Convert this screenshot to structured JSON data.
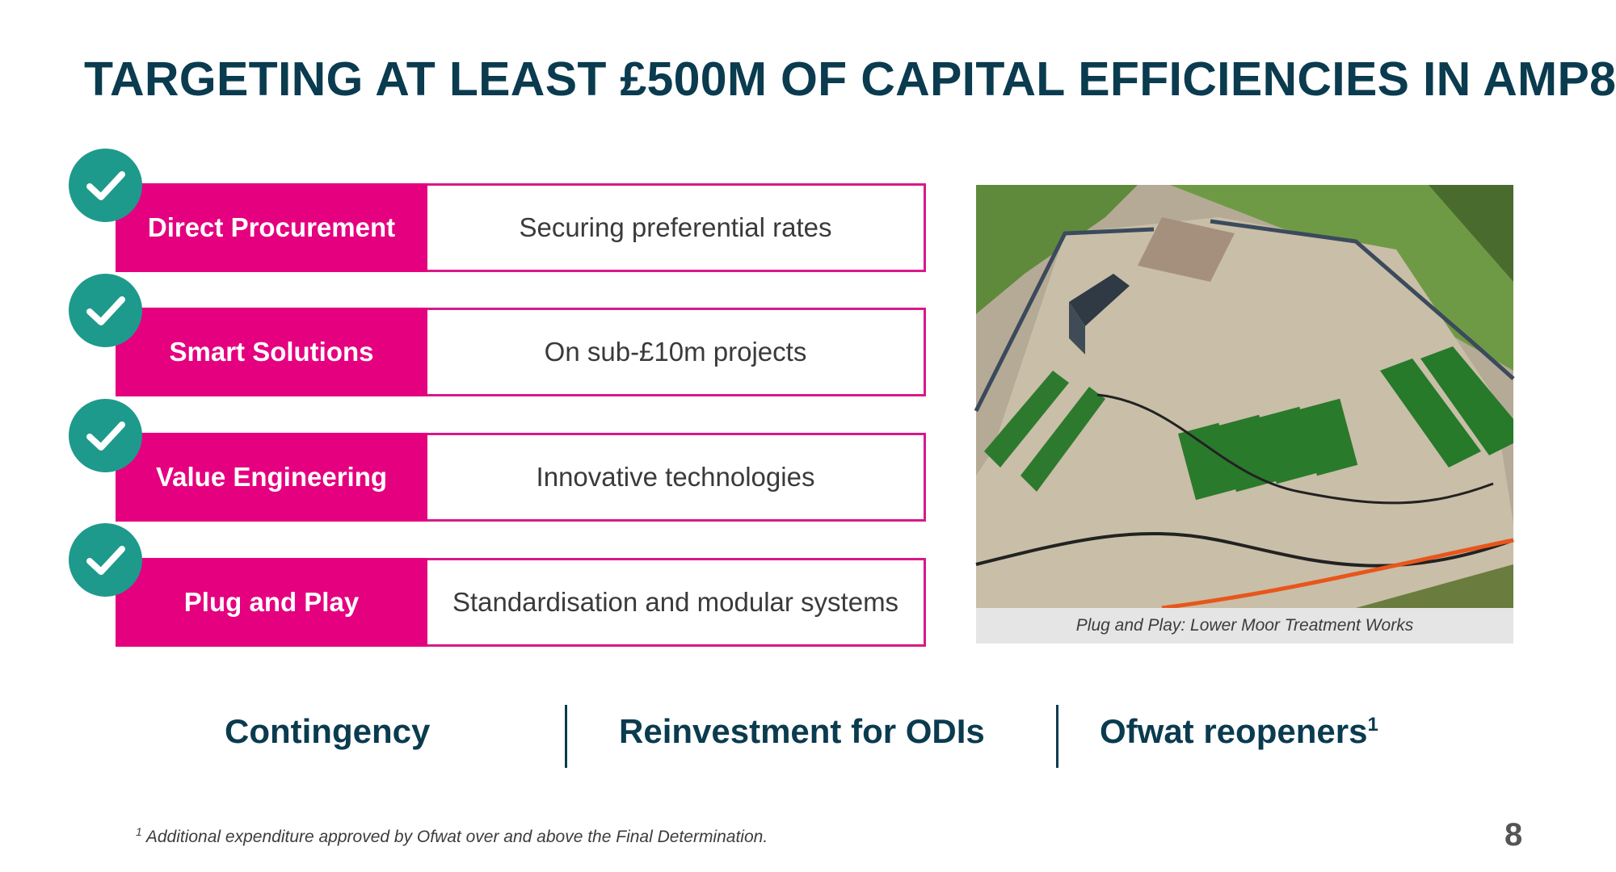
{
  "title": "TARGETING AT LEAST £500M OF CAPITAL EFFICIENCIES IN AMP8",
  "accent_color": "#e4007f",
  "check_color": "#1e9a8c",
  "title_color": "#0a3b4f",
  "levers": [
    {
      "label": "Direct Procurement",
      "description": "Securing preferential rates",
      "icon": "check-icon"
    },
    {
      "label": "Smart Solutions",
      "description": "On sub-£10m projects",
      "icon": "check-icon"
    },
    {
      "label": "Value Engineering",
      "description": "Innovative technologies",
      "icon": "check-icon"
    },
    {
      "label": "Plug and Play",
      "description": "Standardisation and modular systems",
      "icon": "check-icon"
    }
  ],
  "photo": {
    "caption": "Plug and Play: Lower Moor Treatment Works"
  },
  "bottom_items": [
    {
      "label": "Contingency",
      "sup": ""
    },
    {
      "label": "Reinvestment for ODIs",
      "sup": ""
    },
    {
      "label": "Ofwat reopeners",
      "sup": "1"
    }
  ],
  "footnote": {
    "marker": "1",
    "text": " Additional expenditure approved by Ofwat over and above the Final Determination."
  },
  "page_number": "8"
}
